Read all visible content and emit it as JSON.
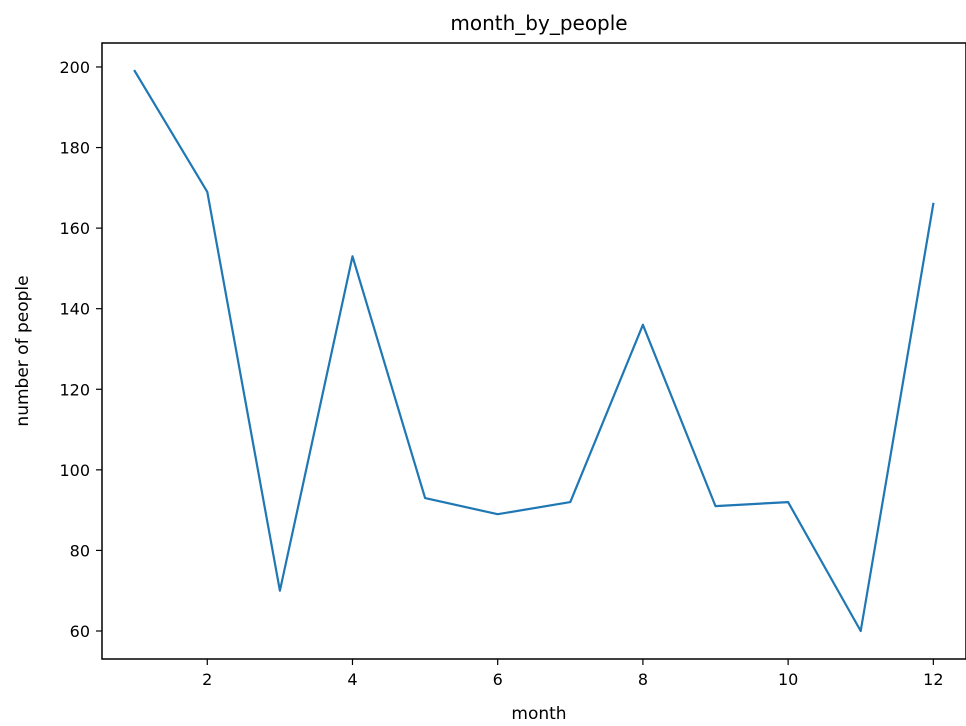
{
  "chart_data": {
    "type": "line",
    "title": "month_by_people",
    "xlabel": "month",
    "ylabel": "number of people",
    "xlim": [
      0.55,
      12.45
    ],
    "ylim": [
      53.05,
      205.95
    ],
    "xticks": [
      2,
      4,
      6,
      8,
      10,
      12
    ],
    "yticks": [
      60,
      80,
      100,
      120,
      140,
      160,
      180,
      200
    ],
    "grid": false,
    "series": [
      {
        "color": "#1f77b4",
        "x": [
          1,
          2,
          3,
          4,
          5,
          6,
          7,
          8,
          9,
          10,
          11,
          12
        ],
        "y": [
          199,
          169,
          70,
          153,
          93,
          89,
          92,
          136,
          91,
          92,
          60,
          166
        ]
      }
    ]
  }
}
